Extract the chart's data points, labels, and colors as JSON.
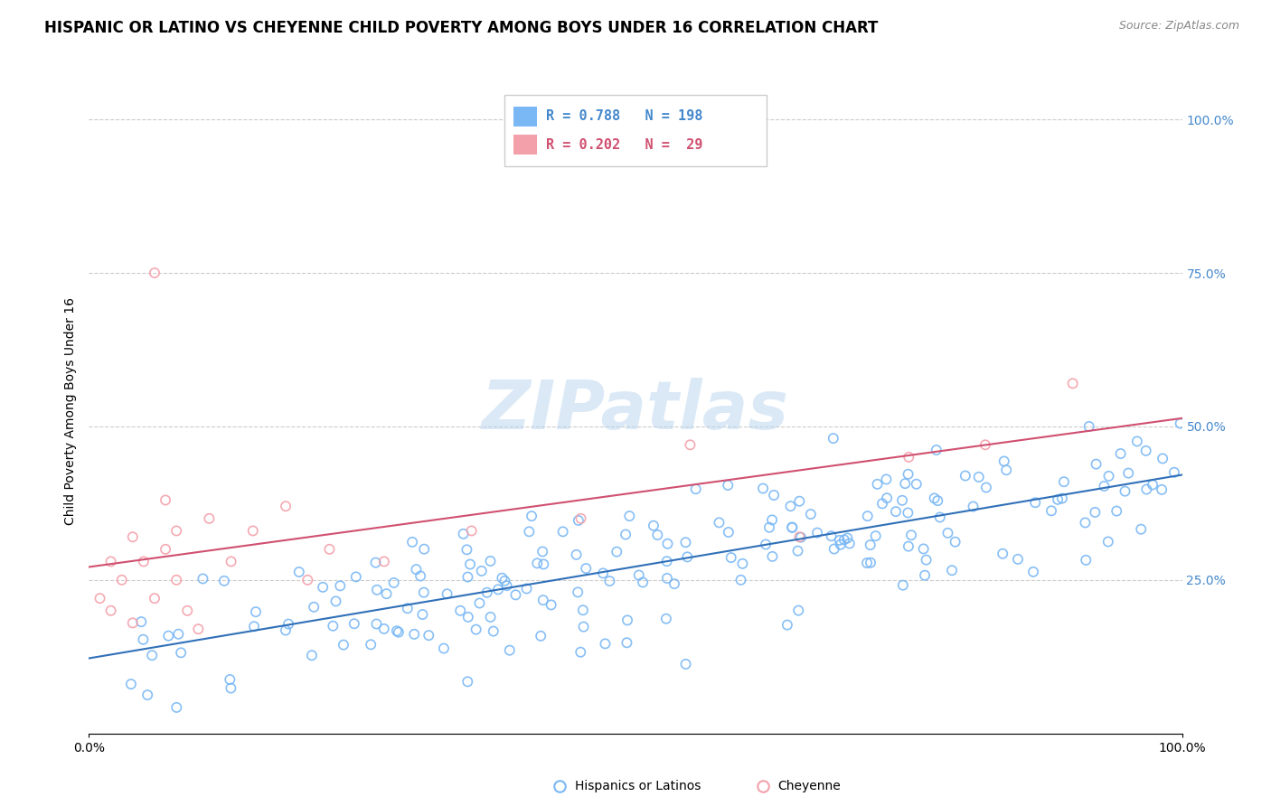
{
  "title": "HISPANIC OR LATINO VS CHEYENNE CHILD POVERTY AMONG BOYS UNDER 16 CORRELATION CHART",
  "source": "Source: ZipAtlas.com",
  "ylabel": "Child Poverty Among Boys Under 16",
  "blue_R": 0.788,
  "blue_N": 198,
  "pink_R": 0.202,
  "pink_N": 29,
  "blue_color": "#7ab8f5",
  "pink_color": "#f4a0aa",
  "blue_line_color": "#3070b8",
  "pink_line_color": "#d05070",
  "legend_label_blue": "Hispanics or Latinos",
  "legend_label_pink": "Cheyenne",
  "watermark": "ZIPatlas",
  "title_fontsize": 12,
  "label_fontsize": 10,
  "tick_fontsize": 10,
  "blue_tick_color": "#4488cc",
  "pink_text_color": "#d05070",
  "blue_text_color": "#4488cc",
  "note_blue_R_label": "R = 0.788",
  "note_blue_N_label": "N = 198",
  "note_pink_R_label": "R = 0.202",
  "note_pink_N_label": "N =  29"
}
